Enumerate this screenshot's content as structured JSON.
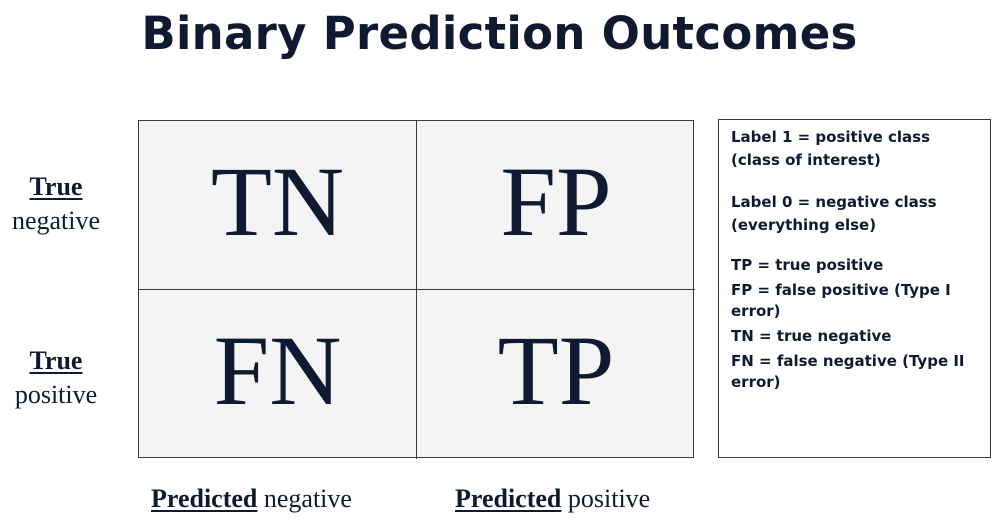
{
  "title": "Binary Prediction Outcomes",
  "matrix": {
    "cells": [
      "TN",
      "FP",
      "FN",
      "TP"
    ]
  },
  "row_labels": [
    {
      "head": "True",
      "tail": "negative"
    },
    {
      "head": "True",
      "tail": "positive"
    }
  ],
  "column_labels": [
    {
      "head": "Predicted",
      "tail": " negative"
    },
    {
      "head": "Predicted",
      "tail": " positive"
    }
  ],
  "legend": {
    "label1_line1": "Label 1 = positive class",
    "label1_line2": "(class of interest)",
    "label0_line1": "Label 0 = negative class",
    "label0_line2": "(everything else)",
    "tp": "TP = true positive",
    "fp": "FP = false positive (Type I error)",
    "tn": "TN = true negative",
    "fn": "FN = false negative  (Type II error)"
  }
}
